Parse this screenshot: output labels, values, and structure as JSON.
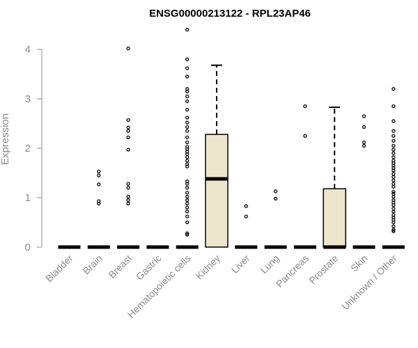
{
  "chart_data": {
    "type": "boxplot",
    "title": "ENSG00000213122 - RPL23AP46",
    "xlabel": "",
    "ylabel": "Expression",
    "ylim": [
      0,
      4.4
    ],
    "yticks": [
      0,
      1,
      2,
      3,
      4
    ],
    "box_fill": "#ede6cc",
    "categories": [
      "Bladder",
      "Brain",
      "Breast",
      "Gastric",
      "Hematopoietic cells",
      "Kidney",
      "Liver",
      "Lung",
      "Pancreas",
      "Prostate",
      "Skin",
      "Unknown / Other"
    ],
    "boxes": [
      {
        "name": "Bladder",
        "q1": 0,
        "median": 0,
        "q3": 0,
        "whisker_low": 0,
        "whisker_high": 0,
        "outliers": []
      },
      {
        "name": "Brain",
        "q1": 0,
        "median": 0,
        "q3": 0,
        "whisker_low": 0,
        "whisker_high": 0,
        "outliers": [
          0.88,
          0.93,
          1.27,
          1.45,
          1.53
        ]
      },
      {
        "name": "Breast",
        "q1": 0,
        "median": 0,
        "q3": 0,
        "whisker_low": 0,
        "whisker_high": 0,
        "outliers": [
          0.88,
          0.95,
          1.02,
          1.2,
          1.28,
          1.97,
          2.22,
          2.35,
          2.42,
          2.57,
          4.02
        ]
      },
      {
        "name": "Gastric",
        "q1": 0,
        "median": 0,
        "q3": 0,
        "whisker_low": 0,
        "whisker_high": 0,
        "outliers": []
      },
      {
        "name": "Hematopoietic cells",
        "q1": 0,
        "median": 0,
        "q3": 0,
        "whisker_low": 0,
        "whisker_high": 0,
        "outliers": [
          0.25,
          0.28,
          0.5,
          0.62,
          0.72,
          0.8,
          0.88,
          0.95,
          1.02,
          1.1,
          1.2,
          1.28,
          1.33,
          1.63,
          1.68,
          1.75,
          1.82,
          1.88,
          1.93,
          1.98,
          2.03,
          2.12,
          2.22,
          2.35,
          2.43,
          2.52,
          2.62,
          2.78,
          2.95,
          3.05,
          3.15,
          3.2,
          3.45,
          3.62,
          3.8,
          4.4
        ]
      },
      {
        "name": "Kidney",
        "q1": 0,
        "median": 1.38,
        "q3": 2.28,
        "whisker_low": 0,
        "whisker_high": 3.68,
        "outliers": []
      },
      {
        "name": "Liver",
        "q1": 0,
        "median": 0,
        "q3": 0,
        "whisker_low": 0,
        "whisker_high": 0,
        "outliers": [
          0.62,
          0.83
        ]
      },
      {
        "name": "Lung",
        "q1": 0,
        "median": 0,
        "q3": 0,
        "whisker_low": 0,
        "whisker_high": 0,
        "outliers": [
          0.98,
          1.13
        ]
      },
      {
        "name": "Pancreas",
        "q1": 0,
        "median": 0,
        "q3": 0,
        "whisker_low": 0,
        "whisker_high": 0,
        "outliers": [
          2.25,
          2.85
        ]
      },
      {
        "name": "Prostate",
        "q1": 0,
        "median": 0,
        "q3": 1.18,
        "whisker_low": 0,
        "whisker_high": 2.83,
        "outliers": []
      },
      {
        "name": "Skin",
        "q1": 0,
        "median": 0,
        "q3": 0,
        "whisker_low": 0,
        "whisker_high": 0,
        "outliers": [
          2.05,
          2.12,
          2.43,
          2.65
        ]
      },
      {
        "name": "Unknown / Other",
        "q1": 0,
        "median": 0,
        "q3": 0,
        "whisker_low": 0,
        "whisker_high": 0,
        "outliers": [
          0.32,
          0.35,
          0.42,
          0.5,
          0.55,
          0.6,
          0.65,
          0.72,
          0.78,
          0.85,
          0.9,
          0.95,
          1.02,
          1.08,
          1.12,
          1.22,
          1.28,
          1.35,
          1.42,
          1.48,
          1.55,
          1.6,
          1.65,
          1.7,
          1.75,
          1.82,
          1.9,
          1.97,
          2.05,
          2.15,
          2.25,
          2.35,
          2.55,
          2.85,
          3.2
        ]
      }
    ]
  }
}
